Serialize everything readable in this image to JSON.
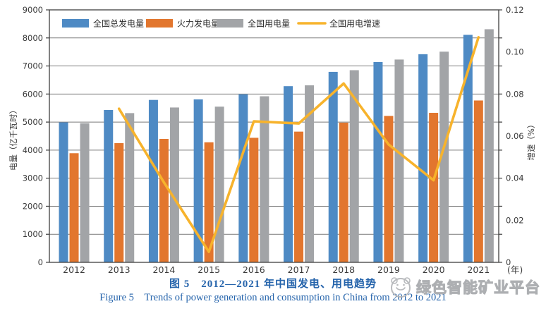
{
  "chart_data": {
    "type": "bar",
    "subtype": "grouped-bars-with-line",
    "categories": [
      "2012",
      "2013",
      "2014",
      "2015",
      "2016",
      "2017",
      "2018",
      "2019",
      "2020",
      "2021"
    ],
    "series": [
      {
        "key": "total-generation",
        "name": "全国总发电量",
        "type": "bar",
        "axis": "left",
        "color": "#4e8ac4",
        "values": [
          4990,
          5430,
          5790,
          5810,
          5990,
          6280,
          6790,
          7140,
          7420,
          8110
        ]
      },
      {
        "key": "thermal-generation",
        "name": "火力发电量",
        "type": "bar",
        "axis": "left",
        "color": "#e2762e",
        "values": [
          3890,
          4250,
          4400,
          4280,
          4440,
          4660,
          4980,
          5220,
          5330,
          5770
        ]
      },
      {
        "key": "total-consumption",
        "name": "全国用电量",
        "type": "bar",
        "axis": "left",
        "color": "#a2a4a7",
        "values": [
          4960,
          5320,
          5520,
          5550,
          5920,
          6310,
          6850,
          7230,
          7510,
          8310
        ]
      },
      {
        "key": "consumption-growth",
        "name": "全国用电增速",
        "type": "line",
        "axis": "right",
        "color": "#f7b32c",
        "values": [
          null,
          0.073,
          0.038,
          0.005,
          0.067,
          0.066,
          0.085,
          0.056,
          0.039,
          0.107
        ]
      }
    ],
    "left_axis": {
      "label": "电量（亿千瓦时）",
      "min": 0,
      "max": 9000,
      "step": 1000
    },
    "right_axis": {
      "label": "增速（%）",
      "min": 0,
      "max": 0.12,
      "label_step": 0.02
    },
    "x_axis": {
      "unit_label": "(年)"
    },
    "legend_position": "top-inside",
    "grid": true,
    "style": {
      "grid_color": "#7a7a7a",
      "axis_color": "#3f3f3f",
      "text_color": "#3a3a3a",
      "caption_color": "#2463ab"
    }
  },
  "captions": {
    "zh": "图 5　2012—2021 年中国发电、用电趋势",
    "en": "Figure 5　Trends of power generation and consumption in China from 2012 to 2021"
  },
  "watermark": {
    "text": "绿色智能矿业平台"
  }
}
